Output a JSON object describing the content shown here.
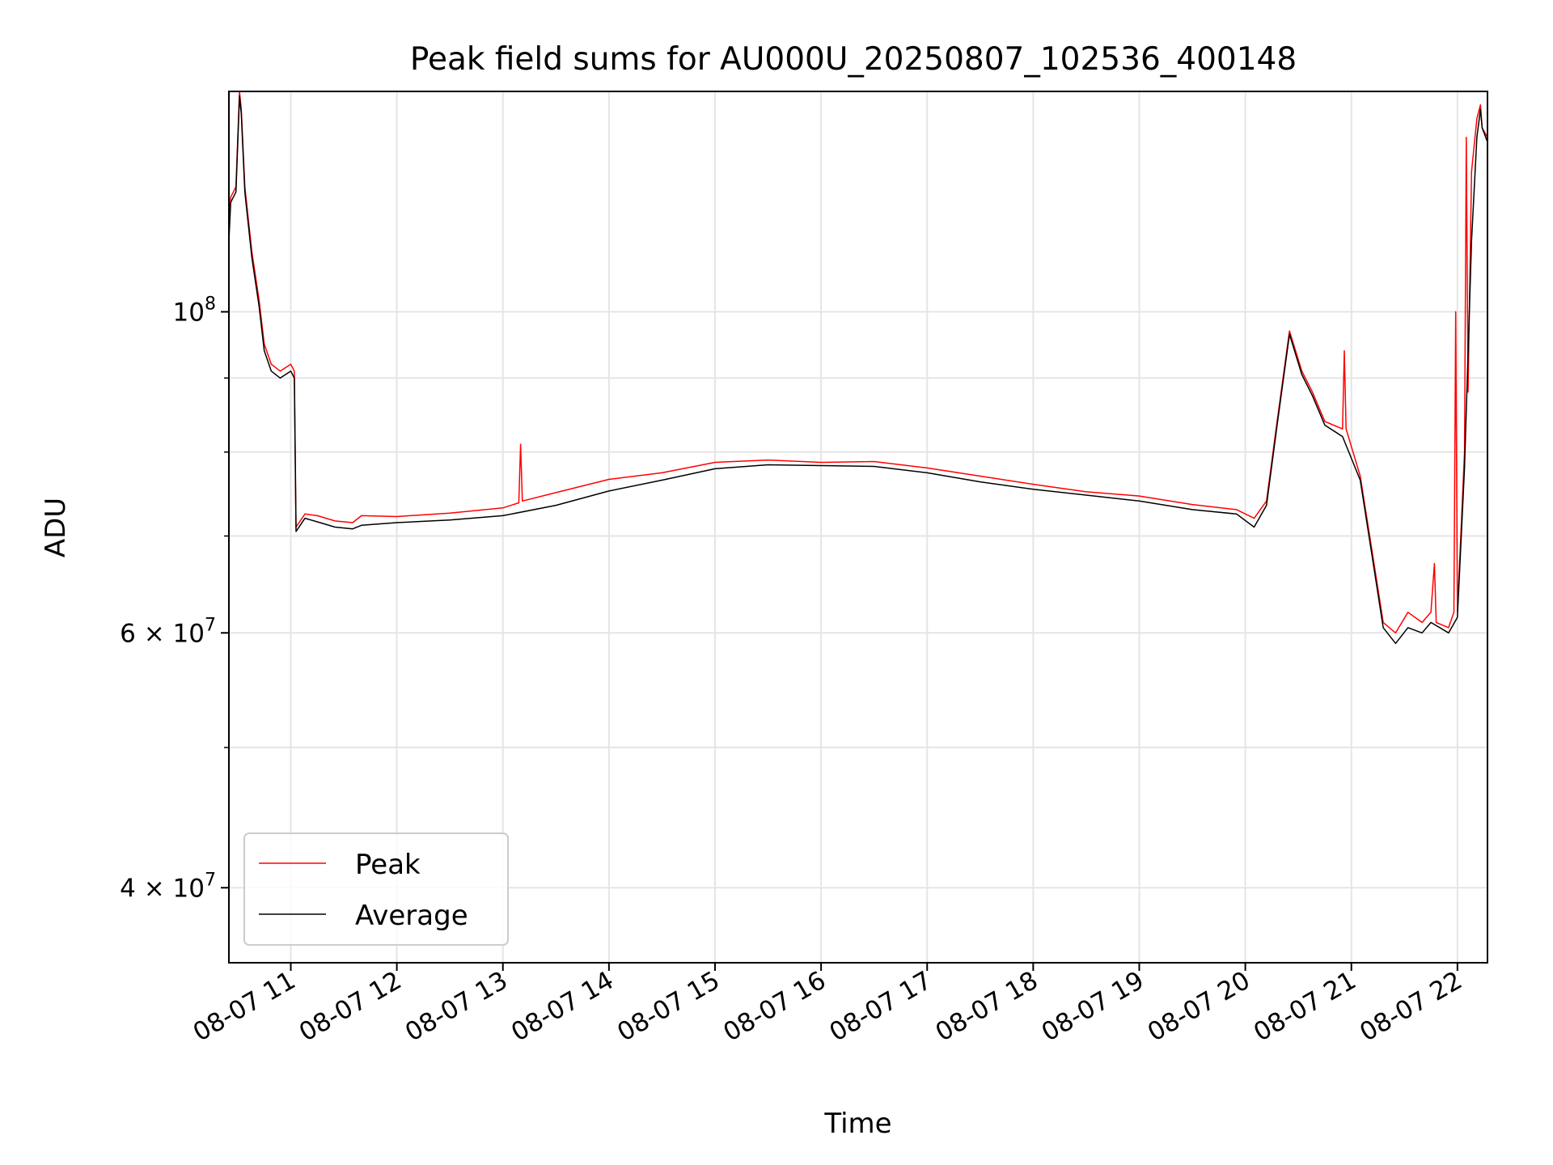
{
  "chart_data": {
    "type": "line",
    "title": "Peak field sums for AU000U_20250807_102536_400148",
    "xlabel": "Time",
    "ylabel": "ADU",
    "y_scale": "log",
    "ylim": [
      35500000,
      142000000
    ],
    "xlim": [
      "2025-08-07 10:25",
      "2025-08-07 22:17"
    ],
    "grid": true,
    "legend_position": "lower-left",
    "x_ticks": [
      "08-07 11",
      "08-07 12",
      "08-07 13",
      "08-07 14",
      "08-07 15",
      "08-07 16",
      "08-07 17",
      "08-07 18",
      "08-07 19",
      "08-07 20",
      "08-07 21",
      "08-07 22"
    ],
    "y_major_ticks": [
      {
        "value": 100000000,
        "base": "10",
        "exp": "8"
      },
      {
        "value": 60000000,
        "base": "6 × 10",
        "exp": "7"
      },
      {
        "value": 40000000,
        "base": "4 × 10",
        "exp": "7"
      }
    ],
    "y_minor_ticks": [
      50000000,
      70000000,
      80000000,
      90000000
    ],
    "series": [
      {
        "name": "Peak",
        "color": "#ff0000",
        "x": [
          "2025-08-07 10:25",
          "2025-08-07 10:26",
          "2025-08-07 10:29",
          "2025-08-07 10:31",
          "2025-08-07 10:32",
          "2025-08-07 10:34",
          "2025-08-07 10:38",
          "2025-08-07 10:42",
          "2025-08-07 10:45",
          "2025-08-07 10:49",
          "2025-08-07 10:54",
          "2025-08-07 11:00",
          "2025-08-07 11:02",
          "2025-08-07 11:03",
          "2025-08-07 11:08",
          "2025-08-07 11:15",
          "2025-08-07 11:25",
          "2025-08-07 11:35",
          "2025-08-07 11:40",
          "2025-08-07 12:00",
          "2025-08-07 12:30",
          "2025-08-07 13:00",
          "2025-08-07 13:09",
          "2025-08-07 13:10",
          "2025-08-07 13:11",
          "2025-08-07 13:30",
          "2025-08-07 14:00",
          "2025-08-07 14:30",
          "2025-08-07 15:00",
          "2025-08-07 15:30",
          "2025-08-07 16:00",
          "2025-08-07 16:30",
          "2025-08-07 17:00",
          "2025-08-07 17:30",
          "2025-08-07 18:00",
          "2025-08-07 18:30",
          "2025-08-07 19:00",
          "2025-08-07 19:30",
          "2025-08-07 19:55",
          "2025-08-07 20:05",
          "2025-08-07 20:12",
          "2025-08-07 20:18",
          "2025-08-07 20:25",
          "2025-08-07 20:32",
          "2025-08-07 20:38",
          "2025-08-07 20:45",
          "2025-08-07 20:55",
          "2025-08-07 20:56",
          "2025-08-07 20:57",
          "2025-08-07 21:05",
          "2025-08-07 21:12",
          "2025-08-07 21:18",
          "2025-08-07 21:25",
          "2025-08-07 21:32",
          "2025-08-07 21:40",
          "2025-08-07 21:45",
          "2025-08-07 21:47",
          "2025-08-07 21:48",
          "2025-08-07 21:55",
          "2025-08-07 21:58",
          "2025-08-07 21:59",
          "2025-08-07 22:00",
          "2025-08-07 22:04",
          "2025-08-07 22:05",
          "2025-08-07 22:06",
          "2025-08-07 22:08",
          "2025-08-07 22:11",
          "2025-08-07 22:13",
          "2025-08-07 22:14",
          "2025-08-07 22:17"
        ],
        "y": [
          113000000,
          120000000,
          122000000,
          142000000,
          138000000,
          122000000,
          110000000,
          102000000,
          95000000,
          92000000,
          91000000,
          92000000,
          91000000,
          71000000,
          72500000,
          72300000,
          71700000,
          71500000,
          72300000,
          72200000,
          72600000,
          73200000,
          73800000,
          81000000,
          74000000,
          75000000,
          76600000,
          77400000,
          78700000,
          79000000,
          78700000,
          78800000,
          78000000,
          77000000,
          76000000,
          75100000,
          74600000,
          73600000,
          73000000,
          72000000,
          74000000,
          84000000,
          97000000,
          91000000,
          88000000,
          84000000,
          83000000,
          94000000,
          83000000,
          77000000,
          68000000,
          61000000,
          60000000,
          62000000,
          61000000,
          62000000,
          67000000,
          61000000,
          60500000,
          62000000,
          100000000,
          62000000,
          80000000,
          132000000,
          88000000,
          125000000,
          136000000,
          139000000,
          134000000,
          132000000
        ]
      },
      {
        "name": "Average",
        "color": "#000000",
        "x": [
          "2025-08-07 10:25",
          "2025-08-07 10:26",
          "2025-08-07 10:29",
          "2025-08-07 10:31",
          "2025-08-07 10:32",
          "2025-08-07 10:34",
          "2025-08-07 10:38",
          "2025-08-07 10:42",
          "2025-08-07 10:45",
          "2025-08-07 10:49",
          "2025-08-07 10:54",
          "2025-08-07 11:00",
          "2025-08-07 11:02",
          "2025-08-07 11:03",
          "2025-08-07 11:08",
          "2025-08-07 11:15",
          "2025-08-07 11:25",
          "2025-08-07 11:35",
          "2025-08-07 11:40",
          "2025-08-07 12:00",
          "2025-08-07 12:30",
          "2025-08-07 13:00",
          "2025-08-07 13:30",
          "2025-08-07 14:00",
          "2025-08-07 14:30",
          "2025-08-07 15:00",
          "2025-08-07 15:30",
          "2025-08-07 16:00",
          "2025-08-07 16:30",
          "2025-08-07 17:00",
          "2025-08-07 17:30",
          "2025-08-07 18:00",
          "2025-08-07 18:30",
          "2025-08-07 19:00",
          "2025-08-07 19:30",
          "2025-08-07 19:55",
          "2025-08-07 20:05",
          "2025-08-07 20:12",
          "2025-08-07 20:18",
          "2025-08-07 20:25",
          "2025-08-07 20:32",
          "2025-08-07 20:38",
          "2025-08-07 20:45",
          "2025-08-07 20:55",
          "2025-08-07 21:05",
          "2025-08-07 21:12",
          "2025-08-07 21:18",
          "2025-08-07 21:25",
          "2025-08-07 21:32",
          "2025-08-07 21:40",
          "2025-08-07 21:45",
          "2025-08-07 21:55",
          "2025-08-07 22:00",
          "2025-08-07 22:04",
          "2025-08-07 22:08",
          "2025-08-07 22:11",
          "2025-08-07 22:13",
          "2025-08-07 22:14",
          "2025-08-07 22:17"
        ],
        "y": [
          112000000,
          119000000,
          121000000,
          141000000,
          137000000,
          121000000,
          109000000,
          101000000,
          94000000,
          91000000,
          90000000,
          91000000,
          90000000,
          70500000,
          72000000,
          71600000,
          71000000,
          70800000,
          71200000,
          71500000,
          71800000,
          72300000,
          73500000,
          75200000,
          76500000,
          77900000,
          78400000,
          78300000,
          78200000,
          77400000,
          76300000,
          75400000,
          74700000,
          74000000,
          73000000,
          72500000,
          71000000,
          73500000,
          83500000,
          96500000,
          90500000,
          87500000,
          83500000,
          82000000,
          76500000,
          67500000,
          60500000,
          59000000,
          60500000,
          60000000,
          61000000,
          60000000,
          61500000,
          78000000,
          112000000,
          132000000,
          138000000,
          134000000,
          131000000
        ]
      }
    ]
  }
}
